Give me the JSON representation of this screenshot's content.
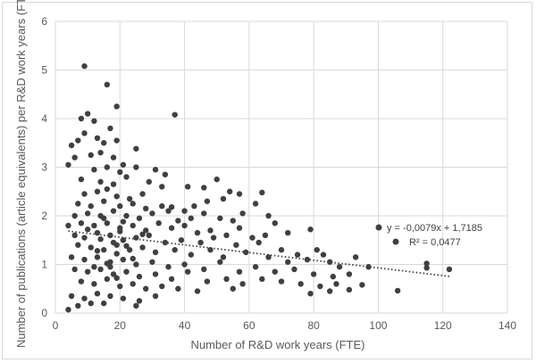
{
  "chart_data": {
    "type": "scatter",
    "title": "",
    "xlabel": "Number of R&D work years (FTE)",
    "ylabel": "Number of publications (article equivalents) per R&D work years (FTE)",
    "xlim": [
      0,
      140
    ],
    "ylim": [
      0,
      6
    ],
    "x_ticks": [
      "0",
      "20",
      "40",
      "60",
      "80",
      "100",
      "120",
      "140"
    ],
    "y_ticks": [
      "0",
      "1",
      "2",
      "3",
      "4",
      "5",
      "6"
    ],
    "grid": true,
    "marker_color": "#404040",
    "trendline": {
      "type": "linear",
      "slope": -0.0079,
      "intercept": 1.7185,
      "x_range": [
        4,
        122
      ],
      "style": "dotted",
      "equation_label": "y = -0,0079x + 1,7185",
      "r2_label": "R² = 0,0477"
    },
    "points": [
      [
        9,
        5.08
      ],
      [
        16,
        4.7
      ],
      [
        19,
        4.25
      ],
      [
        37,
        4.08
      ],
      [
        10,
        4.1
      ],
      [
        8,
        4.0
      ],
      [
        12,
        3.95
      ],
      [
        17,
        3.8
      ],
      [
        5,
        3.45
      ],
      [
        7,
        3.55
      ],
      [
        9,
        3.7
      ],
      [
        13,
        3.6
      ],
      [
        15,
        3.5
      ],
      [
        19,
        3.55
      ],
      [
        25,
        3.38
      ],
      [
        6,
        3.2
      ],
      [
        11,
        3.25
      ],
      [
        14,
        3.3
      ],
      [
        18,
        3.2
      ],
      [
        21,
        3.05
      ],
      [
        4,
        3.05
      ],
      [
        12,
        2.95
      ],
      [
        16,
        3.0
      ],
      [
        20,
        2.9
      ],
      [
        25,
        3.0
      ],
      [
        31,
        2.95
      ],
      [
        34,
        2.85
      ],
      [
        8,
        2.75
      ],
      [
        14,
        2.7
      ],
      [
        18,
        2.65
      ],
      [
        22,
        2.8
      ],
      [
        29,
        2.7
      ],
      [
        33,
        2.6
      ],
      [
        9,
        2.45
      ],
      [
        13,
        2.5
      ],
      [
        16,
        2.55
      ],
      [
        19,
        2.4
      ],
      [
        23,
        2.35
      ],
      [
        27,
        2.45
      ],
      [
        41,
        2.6
      ],
      [
        46,
        2.58
      ],
      [
        50,
        2.75
      ],
      [
        54,
        2.5
      ],
      [
        57,
        2.45
      ],
      [
        64,
        2.48
      ],
      [
        7,
        2.25
      ],
      [
        11,
        2.2
      ],
      [
        15,
        2.3
      ],
      [
        20,
        2.2
      ],
      [
        24,
        2.25
      ],
      [
        28,
        2.15
      ],
      [
        33,
        2.2
      ],
      [
        36,
        2.18
      ],
      [
        40,
        2.1
      ],
      [
        43,
        2.2
      ],
      [
        47,
        2.3
      ],
      [
        52,
        2.35
      ],
      [
        62,
        2.25
      ],
      [
        66,
        2.0
      ],
      [
        6,
        2.0
      ],
      [
        10,
        2.05
      ],
      [
        14,
        2.0
      ],
      [
        18,
        2.1
      ],
      [
        22,
        2.0
      ],
      [
        26,
        1.95
      ],
      [
        30,
        2.05
      ],
      [
        35,
        2.1
      ],
      [
        38,
        1.9
      ],
      [
        42,
        1.95
      ],
      [
        46,
        2.05
      ],
      [
        51,
        1.95
      ],
      [
        55,
        1.9
      ],
      [
        58,
        2.05
      ],
      [
        68,
        1.85
      ],
      [
        72,
        1.65
      ],
      [
        4,
        1.8
      ],
      [
        8,
        1.85
      ],
      [
        12,
        1.8
      ],
      [
        16,
        1.85
      ],
      [
        20,
        1.75
      ],
      [
        24,
        1.8
      ],
      [
        28,
        1.7
      ],
      [
        32,
        1.85
      ],
      [
        36,
        1.75
      ],
      [
        40,
        1.8
      ],
      [
        44,
        1.65
      ],
      [
        48,
        1.7
      ],
      [
        53,
        1.6
      ],
      [
        57,
        1.75
      ],
      [
        61,
        1.55
      ],
      [
        65,
        1.6
      ],
      [
        79,
        1.72
      ],
      [
        6,
        1.6
      ],
      [
        9,
        1.55
      ],
      [
        13,
        1.65
      ],
      [
        17,
        1.6
      ],
      [
        21,
        1.5
      ],
      [
        25,
        1.55
      ],
      [
        29,
        1.6
      ],
      [
        34,
        1.45
      ],
      [
        39,
        1.5
      ],
      [
        45,
        1.45
      ],
      [
        49,
        1.55
      ],
      [
        56,
        1.4
      ],
      [
        63,
        1.45
      ],
      [
        70,
        1.3
      ],
      [
        75,
        1.2
      ],
      [
        81,
        1.3
      ],
      [
        85,
        1.05
      ],
      [
        7,
        1.4
      ],
      [
        11,
        1.35
      ],
      [
        15,
        1.3
      ],
      [
        19,
        1.4
      ],
      [
        23,
        1.3
      ],
      [
        27,
        1.35
      ],
      [
        31,
        1.25
      ],
      [
        37,
        1.3
      ],
      [
        42,
        1.2
      ],
      [
        48,
        1.3
      ],
      [
        52,
        1.15
      ],
      [
        59,
        1.25
      ],
      [
        66,
        1.15
      ],
      [
        72,
        1.05
      ],
      [
        78,
        1.1
      ],
      [
        83,
        1.2
      ],
      [
        88,
        0.95
      ],
      [
        93,
        1.15
      ],
      [
        5,
        1.15
      ],
      [
        9,
        1.1
      ],
      [
        13,
        1.15
      ],
      [
        17,
        1.05
      ],
      [
        21,
        1.1
      ],
      [
        25,
        1.0
      ],
      [
        30,
        1.05
      ],
      [
        35,
        0.95
      ],
      [
        40,
        1.0
      ],
      [
        46,
        0.9
      ],
      [
        51,
        1.05
      ],
      [
        57,
        0.85
      ],
      [
        62,
        0.95
      ],
      [
        68,
        0.85
      ],
      [
        74,
        0.9
      ],
      [
        80,
        0.8
      ],
      [
        86,
        0.75
      ],
      [
        91,
        0.8
      ],
      [
        97,
        0.95
      ],
      [
        115,
        1.02
      ],
      [
        115,
        0.93
      ],
      [
        122,
        0.9
      ],
      [
        6,
        0.9
      ],
      [
        10,
        0.85
      ],
      [
        14,
        0.9
      ],
      [
        18,
        0.8
      ],
      [
        22,
        0.85
      ],
      [
        26,
        0.75
      ],
      [
        31,
        0.8
      ],
      [
        36,
        0.7
      ],
      [
        41,
        0.85
      ],
      [
        47,
        0.65
      ],
      [
        53,
        0.7
      ],
      [
        58,
        0.6
      ],
      [
        64,
        0.7
      ],
      [
        70,
        0.65
      ],
      [
        76,
        0.6
      ],
      [
        82,
        0.55
      ],
      [
        87,
        0.6
      ],
      [
        95,
        0.58
      ],
      [
        8,
        0.65
      ],
      [
        12,
        0.6
      ],
      [
        16,
        0.7
      ],
      [
        20,
        0.55
      ],
      [
        24,
        0.6
      ],
      [
        28,
        0.5
      ],
      [
        33,
        0.55
      ],
      [
        38,
        0.5
      ],
      [
        44,
        0.45
      ],
      [
        55,
        0.5
      ],
      [
        79,
        0.4
      ],
      [
        85,
        0.45
      ],
      [
        91,
        0.48
      ],
      [
        106,
        0.46
      ],
      [
        5,
        0.35
      ],
      [
        9,
        0.3
      ],
      [
        13,
        0.4
      ],
      [
        17,
        0.35
      ],
      [
        21,
        0.3
      ],
      [
        26,
        0.25
      ],
      [
        31,
        0.35
      ],
      [
        7,
        0.15
      ],
      [
        11,
        0.2
      ],
      [
        15,
        0.2
      ],
      [
        25,
        0.15
      ],
      [
        4,
        0.07
      ],
      [
        19,
        1.22
      ],
      [
        18,
        1.45
      ],
      [
        20,
        1.68
      ],
      [
        16,
        1.02
      ],
      [
        17,
        0.95
      ],
      [
        22,
        1.38
      ],
      [
        14,
        1.52
      ],
      [
        13,
        1.28
      ],
      [
        24,
        1.12
      ],
      [
        27,
        1.62
      ],
      [
        12,
        0.95
      ],
      [
        10,
        1.72
      ],
      [
        19,
        0.72
      ],
      [
        21,
        1.88
      ],
      [
        15,
        1.95
      ]
    ]
  }
}
